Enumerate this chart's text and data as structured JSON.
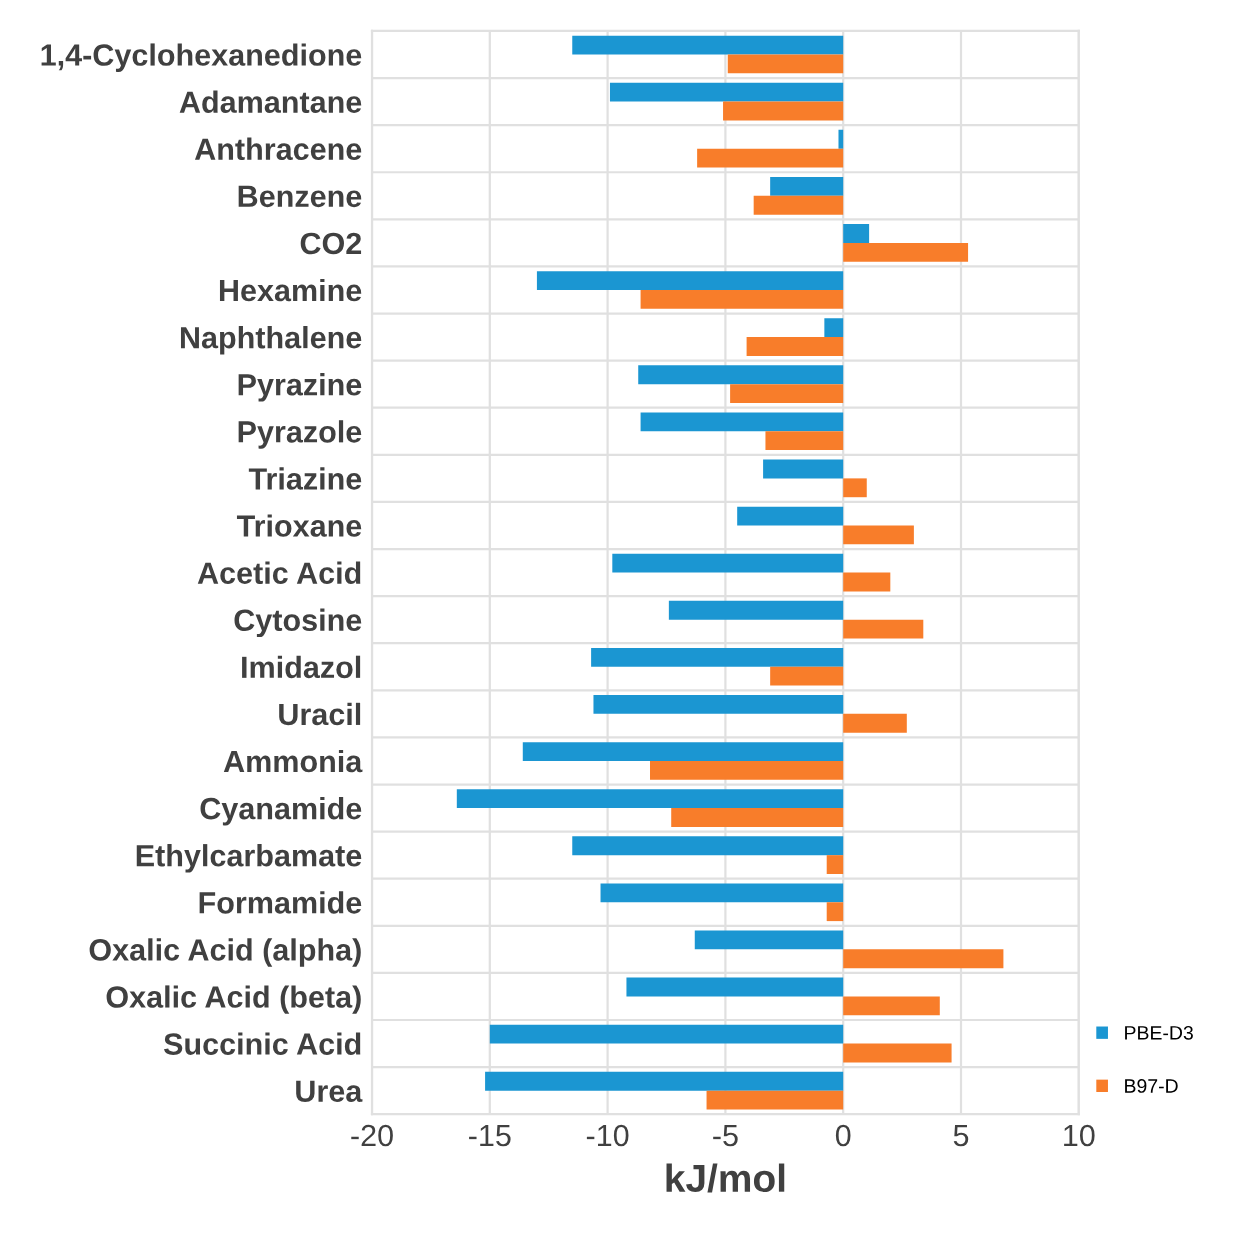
{
  "chart_data": {
    "type": "bar",
    "orientation": "horizontal",
    "xlabel": "kJ/mol",
    "categories": [
      "1,4-Cyclohexanedione",
      "Adamantane",
      "Anthracene",
      "Benzene",
      "CO2",
      "Hexamine",
      "Naphthalene",
      "Pyrazine",
      "Pyrazole",
      "Triazine",
      "Trioxane",
      "Acetic Acid",
      "Cytosine",
      "Imidazol",
      "Uracil",
      "Ammonia",
      "Cyanamide",
      "Ethylcarbamate",
      "Formamide",
      "Oxalic Acid (alpha)",
      "Oxalic Acid (beta)",
      "Succinic Acid",
      "Urea"
    ],
    "series": [
      {
        "name": "PBE-D3",
        "color": "#1b96d2",
        "values": [
          -11.5,
          -9.9,
          -0.2,
          -3.1,
          1.1,
          -13.0,
          -0.8,
          -8.7,
          -8.6,
          -3.4,
          -4.5,
          -9.8,
          -7.4,
          -10.7,
          -10.6,
          -13.6,
          -16.4,
          -11.5,
          -10.3,
          -6.3,
          -9.2,
          -15.0,
          -15.2
        ]
      },
      {
        "name": "B97-D",
        "color": "#f87d2a",
        "values": [
          -4.9,
          -5.1,
          -6.2,
          -3.8,
          5.3,
          -8.6,
          -4.1,
          -4.8,
          -3.3,
          1.0,
          3.0,
          2.0,
          3.4,
          -3.1,
          2.7,
          -8.2,
          -7.3,
          -0.7,
          -0.7,
          6.8,
          4.1,
          4.6,
          -5.8
        ]
      }
    ],
    "xlim": [
      -20,
      10
    ],
    "xticks": [
      -20,
      -15,
      -10,
      -5,
      0,
      5,
      10
    ],
    "grid": true,
    "legend": "bottom right"
  }
}
